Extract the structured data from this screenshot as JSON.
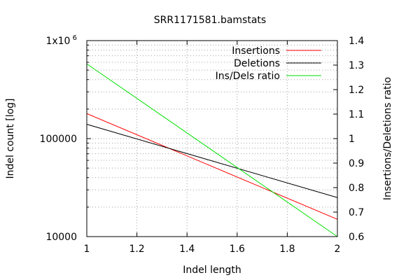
{
  "chart_data": {
    "type": "line",
    "title": "SRR1171581.bamstats",
    "xlabel": "Indel length",
    "ylabel": "Indel count [log]",
    "y2label": "Insertions/Deletions ratio",
    "xlim": [
      1,
      2
    ],
    "ylim": [
      10000,
      1000000
    ],
    "yscale": "log",
    "y2lim": [
      0.6,
      1.4
    ],
    "grid": true,
    "legend_position": "top-right",
    "x_ticks": [
      1,
      1.2,
      1.4,
      1.6,
      1.8,
      2
    ],
    "x_tick_labels": [
      "1",
      "1.2",
      "1.4",
      "1.6",
      "1.8",
      "2"
    ],
    "y_ticks": [
      10000,
      100000,
      1000000
    ],
    "y_tick_labels": [
      "10000",
      "100000",
      "1x10"
    ],
    "y_tick_superscript": "6",
    "y2_ticks": [
      0.6,
      0.7,
      0.8,
      0.9,
      1.0,
      1.1,
      1.2,
      1.3,
      1.4
    ],
    "y2_tick_labels": [
      "0.6",
      "0.7",
      "0.8",
      "0.9",
      "1",
      "1.1",
      "1.2",
      "1.3",
      "1.4"
    ],
    "series": [
      {
        "name": "Insertions",
        "axis": "y",
        "color": "#ff0000",
        "x": [
          1,
          2
        ],
        "y": [
          180000,
          15000
        ]
      },
      {
        "name": "Deletions",
        "axis": "y",
        "color": "#000000",
        "x": [
          1,
          2
        ],
        "y": [
          140000,
          25000
        ]
      },
      {
        "name": "Ins/Dels ratio",
        "axis": "y2",
        "color": "#00e000",
        "x": [
          1,
          2
        ],
        "y": [
          1.305,
          0.6
        ]
      }
    ]
  }
}
